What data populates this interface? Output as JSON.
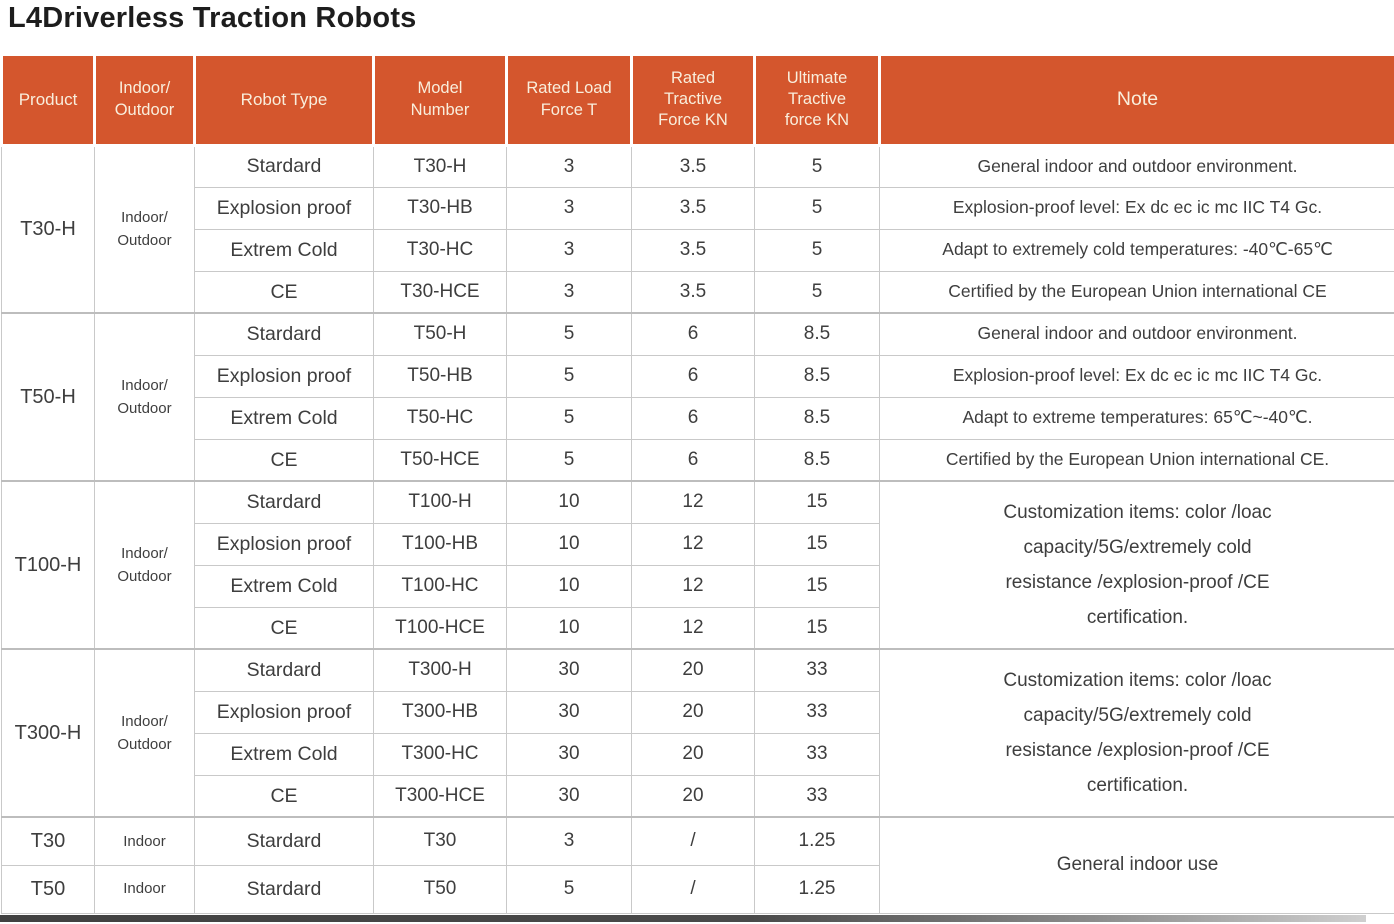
{
  "title": "L4Driverless Traction Robots",
  "accent_color": "#D4562D",
  "header_text_color": "#F9EEDC",
  "table": {
    "headers": [
      "Product",
      "Indoor/\nOutdoor",
      "Robot Type",
      "Model\nNumber",
      "Rated Load\nForce T",
      "Rated\nTractive\nForce KN",
      "Ultimate\nTractive\nforce KN",
      "Note"
    ],
    "groups": [
      {
        "product": "T30-H",
        "environment": "Indoor/\nOutdoor",
        "rows": [
          {
            "type": "Stardard",
            "model": "T30-H",
            "load": "3",
            "tractive": "3.5",
            "ultimate": "5",
            "note": "General indoor and outdoor environment."
          },
          {
            "type": "Explosion proof",
            "model": "T30-HB",
            "load": "3",
            "tractive": "3.5",
            "ultimate": "5",
            "note": "Explosion-proof level: Ex dc ec ic mc IIC T4 Gc."
          },
          {
            "type": "Extrem Cold",
            "model": "T30-HC",
            "load": "3",
            "tractive": "3.5",
            "ultimate": "5",
            "note": "Adapt to extremely cold temperatures: -40℃-65℃"
          },
          {
            "type": "CE",
            "model": "T30-HCE",
            "load": "3",
            "tractive": "3.5",
            "ultimate": "5",
            "note": "Certified by the European Union international CE"
          }
        ]
      },
      {
        "product": "T50-H",
        "environment": "Indoor/\nOutdoor",
        "rows": [
          {
            "type": "Stardard",
            "model": "T50-H",
            "load": "5",
            "tractive": "6",
            "ultimate": "8.5",
            "note": "General indoor and outdoor environment."
          },
          {
            "type": "Explosion proof",
            "model": "T50-HB",
            "load": "5",
            "tractive": "6",
            "ultimate": "8.5",
            "note": "Explosion-proof level: Ex dc ec ic mc IIC T4 Gc."
          },
          {
            "type": "Extrem Cold",
            "model": "T50-HC",
            "load": "5",
            "tractive": "6",
            "ultimate": "8.5",
            "note": "Adapt to extreme temperatures: 65℃~-40℃."
          },
          {
            "type": "CE",
            "model": "T50-HCE",
            "load": "5",
            "tractive": "6",
            "ultimate": "8.5",
            "note": "Certified by the European Union international CE."
          }
        ]
      },
      {
        "product": "T100-H",
        "environment": "Indoor/\nOutdoor",
        "merged_note": "Customization items: color /loac\ncapacity/5G/extremely cold\nresistance /explosion-proof /CE\ncertification.",
        "rows": [
          {
            "type": "Stardard",
            "model": "T100-H",
            "load": "10",
            "tractive": "12",
            "ultimate": "15"
          },
          {
            "type": "Explosion proof",
            "model": "T100-HB",
            "load": "10",
            "tractive": "12",
            "ultimate": "15"
          },
          {
            "type": "Extrem Cold",
            "model": "T100-HC",
            "load": "10",
            "tractive": "12",
            "ultimate": "15"
          },
          {
            "type": "CE",
            "model": "T100-HCE",
            "load": "10",
            "tractive": "12",
            "ultimate": "15"
          }
        ]
      },
      {
        "product": "T300-H",
        "environment": "Indoor/\nOutdoor",
        "merged_note": "Customization items: color /loac\ncapacity/5G/extremely cold\nresistance /explosion-proof /CE\ncertification.",
        "rows": [
          {
            "type": "Stardard",
            "model": "T300-H",
            "load": "30",
            "tractive": "20",
            "ultimate": "33"
          },
          {
            "type": "Explosion proof",
            "model": "T300-HB",
            "load": "30",
            "tractive": "20",
            "ultimate": "33"
          },
          {
            "type": "Extrem Cold",
            "model": "T300-HC",
            "load": "30",
            "tractive": "20",
            "ultimate": "33"
          },
          {
            "type": "CE",
            "model": "T300-HCE",
            "load": "30",
            "tractive": "20",
            "ultimate": "33"
          }
        ]
      }
    ],
    "simple_rows": [
      {
        "product": "T30",
        "environment": "Indoor",
        "type": "Stardard",
        "model": "T30",
        "load": "3",
        "tractive": "/",
        "ultimate": "1.25"
      },
      {
        "product": "T50",
        "environment": "Indoor",
        "type": "Stardard",
        "model": "T50",
        "load": "5",
        "tractive": "/",
        "ultimate": "1.25"
      }
    ],
    "simple_note": "General indoor use"
  }
}
